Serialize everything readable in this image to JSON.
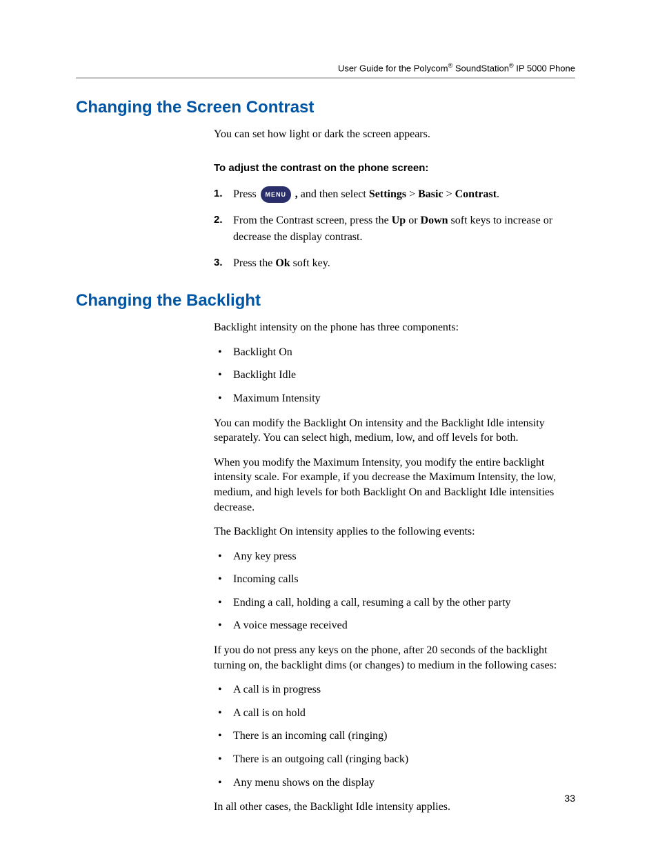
{
  "header": {
    "text_pre": "User Guide for the Polycom",
    "reg1": "®",
    "text_mid": " SoundStation",
    "reg2": "®",
    "text_post": " IP 5000 Phone"
  },
  "section1": {
    "title": "Changing the Screen Contrast",
    "intro": "You can set how light or dark the screen appears.",
    "subhead": "To adjust the contrast on the phone screen:",
    "step1": {
      "num": "1.",
      "pre": "Press ",
      "badge": "MENU",
      "post_comma": ",",
      "post_text": " and then select ",
      "b1": "Settings",
      "gt1": " > ",
      "b2": "Basic",
      "gt2": " > ",
      "b3": "Contrast",
      "period": "."
    },
    "step2": {
      "num": "2.",
      "pre": "From the Contrast screen, press the ",
      "b1": "Up",
      "mid": " or ",
      "b2": "Down",
      "post": " soft keys to increase or decrease the display contrast."
    },
    "step3": {
      "num": "3.",
      "pre": "Press the ",
      "b1": "Ok",
      "post": " soft key."
    }
  },
  "section2": {
    "title": "Changing the Backlight",
    "intro": "Backlight intensity on the phone has three components:",
    "components": [
      "Backlight On",
      "Backlight Idle",
      "Maximum Intensity"
    ],
    "para1": "You can modify the Backlight On intensity and the Backlight Idle intensity separately. You can select high, medium, low, and off levels for both.",
    "para2": "When you modify the Maximum Intensity, you modify the entire backlight intensity scale. For example, if you decrease the Maximum Intensity, the low, medium, and high levels for both Backlight On and Backlight Idle intensities decrease.",
    "para3": "The Backlight On intensity applies to the following events:",
    "events": [
      "Any key press",
      "Incoming calls",
      "Ending a call, holding a call, resuming a call by the other party",
      "A voice message received"
    ],
    "para4": "If you do not press any keys on the phone, after 20 seconds of the backlight turning on, the backlight dims (or changes) to medium in the following cases:",
    "cases": [
      "A call is in progress",
      "A call is on hold",
      "There is an incoming call (ringing)",
      "There is an outgoing call (ringing back)",
      "Any menu shows on the display"
    ],
    "para5": "In all other cases, the Backlight Idle intensity applies."
  },
  "page_number": "33",
  "colors": {
    "heading": "#0055a5",
    "rule": "#bfbfbf",
    "badge_bg": "#2a2f6b",
    "badge_fg": "#ffffff"
  }
}
